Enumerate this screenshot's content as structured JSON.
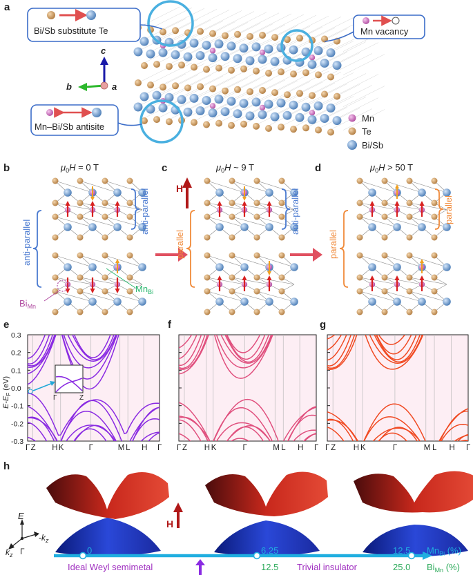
{
  "panel_labels": [
    "a",
    "b",
    "c",
    "d",
    "e",
    "f",
    "g",
    "h"
  ],
  "panel_a": {
    "callout_substitute": "Bi/Sb substitute Te",
    "callout_vacancy": "Mn vacancy",
    "callout_antisite": "Mn–Bi/Sb antisite",
    "axis_c": "c",
    "axis_b": "b",
    "axis_a": "a",
    "legend": [
      {
        "label": "Mn",
        "color": "#c860b8"
      },
      {
        "label": "Te",
        "color": "#c8935a"
      },
      {
        "label": "Bi/Sb",
        "color": "#6a98c8"
      }
    ]
  },
  "panel_b": {
    "field": "μ0H = 0 T",
    "left_bracket": "anti-parallel",
    "right_bracket": "anti-parallel",
    "mn_bi": "MnBi",
    "bi_mn": "BiMn"
  },
  "panel_c": {
    "field": "μ0H ~ 9 T",
    "h_label": "H",
    "left_bracket": "parallel",
    "right_bracket": "anti-parallel"
  },
  "panel_d": {
    "field": "μ0H > 50 T",
    "left_bracket": "parallel",
    "right_bracket": "parallel"
  },
  "band_axes": {
    "ylabel": "E-EF (eV)",
    "yticks": [
      "0.3",
      "0.2",
      "0.1",
      "0.0",
      "-0.1",
      "-0.2",
      "-0.3"
    ],
    "ylim": [
      -0.3,
      0.3
    ],
    "kpath": [
      "Γ",
      "Z",
      "H",
      "K",
      "Γ",
      "M",
      "L",
      "H",
      "Γ"
    ]
  },
  "inset_ticks": [
    "Γ",
    "Z"
  ],
  "panel_colors": {
    "e": "#8a2be2",
    "f": "#e0507e",
    "g": "#f04a22"
  },
  "panel_h": {
    "h_label": "H",
    "axes": {
      "e": "E",
      "kz": "kz",
      "mkz": "-kz",
      "gamma": "Γ"
    },
    "ticks_top": [
      "0",
      "6.25",
      "12.5"
    ],
    "ticks_bottom": [
      "12.5",
      "25.0"
    ],
    "unit_top": "MnBi (%)",
    "unit_bottom": "BiMn (%)",
    "phase_left": "Ideal Weyl semimetal",
    "phase_right": "Trivial insulator"
  }
}
